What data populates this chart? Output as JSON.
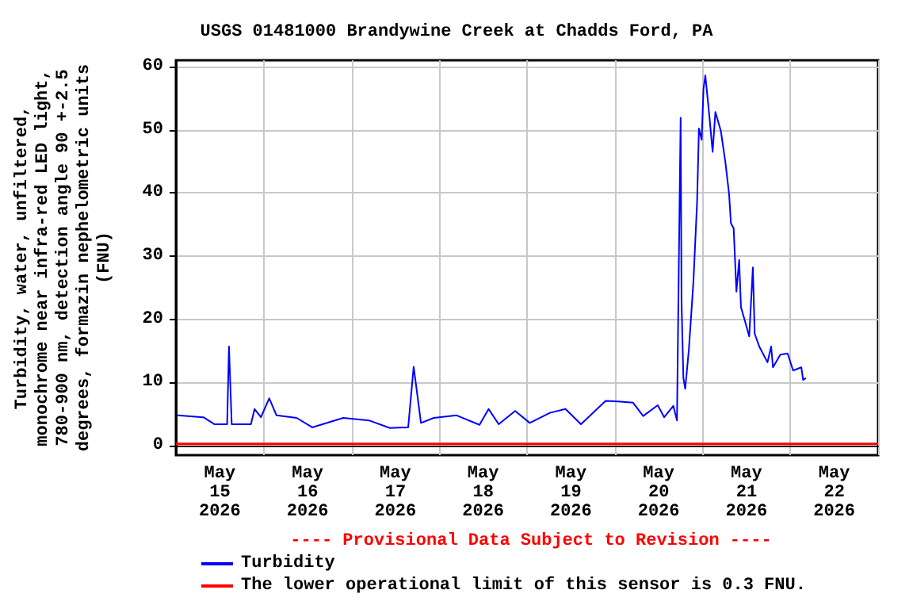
{
  "chart_data": {
    "type": "line",
    "title": "USGS 01481000 Brandywine Creek at Chadds Ford, PA",
    "ylabel": "Turbidity, water, unfiltered,\nmonochrome near infra-red LED light,\n780-900 nm, detection angle 90 +-2.5\ndegrees, formazin nephelometric units\n(FNU)",
    "annotations": [
      "---- Provisional Data Subject to Revision ----"
    ],
    "x": [
      "2026-05-15T00:30",
      "2026-05-15T07:30",
      "2026-05-15T10:30",
      "2026-05-15T14:00",
      "2026-05-15T14:30",
      "2026-05-15T15:15",
      "2026-05-15T17:30",
      "2026-05-15T20:30",
      "2026-05-15T21:30",
      "2026-05-15T23:15",
      "2026-05-16T01:30",
      "2026-05-16T03:30",
      "2026-05-16T09:00",
      "2026-05-16T13:15",
      "2026-05-16T21:45",
      "2026-05-17T04:45",
      "2026-05-17T10:30",
      "2026-05-17T15:30",
      "2026-05-17T17:00",
      "2026-05-17T19:00",
      "2026-05-17T22:30",
      "2026-05-18T04:45",
      "2026-05-18T11:00",
      "2026-05-18T13:30",
      "2026-05-18T16:15",
      "2026-05-18T20:45",
      "2026-05-19T00:45",
      "2026-05-19T06:15",
      "2026-05-19T10:30",
      "2026-05-19T14:45",
      "2026-05-19T21:30",
      "2026-05-20T00:45",
      "2026-05-20T05:00",
      "2026-05-20T07:45",
      "2026-05-20T11:45",
      "2026-05-20T13:30",
      "2026-05-20T16:00",
      "2026-05-20T17:00",
      "2026-05-20T17:30",
      "2026-05-20T18:00",
      "2026-05-20T18:15",
      "2026-05-20T18:45",
      "2026-05-20T19:15",
      "2026-05-20T20:15",
      "2026-05-20T21:30",
      "2026-05-20T22:30",
      "2026-05-20T23:00",
      "2026-05-20T23:45",
      "2026-05-21T00:15",
      "2026-05-21T00:45",
      "2026-05-21T01:45",
      "2026-05-21T02:45",
      "2026-05-21T03:30",
      "2026-05-21T05:00",
      "2026-05-21T06:15",
      "2026-05-21T07:15",
      "2026-05-21T07:45",
      "2026-05-21T08:30",
      "2026-05-21T09:15",
      "2026-05-21T10:00",
      "2026-05-21T10:30",
      "2026-05-21T11:45",
      "2026-05-21T12:45",
      "2026-05-21T13:45",
      "2026-05-21T14:15",
      "2026-05-21T15:30",
      "2026-05-21T17:45",
      "2026-05-21T18:45",
      "2026-05-21T19:15",
      "2026-05-21T21:15",
      "2026-05-21T23:15",
      "2026-05-22T00:45",
      "2026-05-22T03:00",
      "2026-05-22T03:30",
      "2026-05-22T04:15"
    ],
    "series": [
      {
        "name": "Turbidity",
        "color": "#0000ff",
        "values": [
          4.8,
          4.5,
          3.4,
          3.4,
          15.7,
          3.4,
          3.4,
          3.4,
          5.8,
          4.5,
          7.5,
          4.8,
          4.4,
          2.9,
          4.4,
          4,
          2.8,
          2.9,
          12.5,
          3.6,
          4.4,
          4.8,
          3.3,
          5.8,
          3.4,
          5.5,
          3.6,
          5.2,
          5.8,
          3.4,
          7.1,
          7,
          6.8,
          4.7,
          6.4,
          4.5,
          6.3,
          4,
          28.6,
          51.9,
          22.7,
          10.7,
          9,
          15.2,
          26,
          38.6,
          50.2,
          48.4,
          56.5,
          58.6,
          52.8,
          46.5,
          52.8,
          49.8,
          44.8,
          39.8,
          35.2,
          34.4,
          24.4,
          29.4,
          21.9,
          19.4,
          17.3,
          28.2,
          17.7,
          15.7,
          13.2,
          15.7,
          12.4,
          14.4,
          14.6,
          11.9,
          12.4,
          10.4,
          10.7
        ]
      }
    ],
    "ref_lines": [
      {
        "axis": "y",
        "value": 0.3,
        "label": "The lower operational limit of this sensor is 0.3 FNU.",
        "color": "#ff0000"
      }
    ],
    "xlim": [
      "2026-05-15T00:00",
      "2026-05-23T00:00"
    ],
    "xticks": [
      {
        "value": "2026-05-15T00:00",
        "label": null
      },
      {
        "value": "2026-05-15T12:00",
        "label": "May\n15\n2026"
      },
      {
        "value": "2026-05-16T00:00",
        "label": null
      },
      {
        "value": "2026-05-16T12:00",
        "label": "May\n16\n2026"
      },
      {
        "value": "2026-05-17T00:00",
        "label": null
      },
      {
        "value": "2026-05-17T12:00",
        "label": "May\n17\n2026"
      },
      {
        "value": "2026-05-18T00:00",
        "label": null
      },
      {
        "value": "2026-05-18T12:00",
        "label": "May\n18\n2026"
      },
      {
        "value": "2026-05-19T00:00",
        "label": null
      },
      {
        "value": "2026-05-19T12:00",
        "label": "May\n19\n2026"
      },
      {
        "value": "2026-05-20T00:00",
        "label": null
      },
      {
        "value": "2026-05-20T12:00",
        "label": "May\n20\n2026"
      },
      {
        "value": "2026-05-21T00:00",
        "label": null
      },
      {
        "value": "2026-05-21T12:00",
        "label": "May\n21\n2026"
      },
      {
        "value": "2026-05-22T00:00",
        "label": null
      },
      {
        "value": "2026-05-22T12:00",
        "label": "May\n22\n2026"
      },
      {
        "value": "2026-05-23T00:00",
        "label": null
      }
    ],
    "ylim": [
      -1.5,
      61
    ],
    "yticks": [
      0,
      10,
      20,
      30,
      40,
      50,
      60
    ],
    "grid": true,
    "legend": "bottom",
    "marker": "none",
    "line_style": "solid"
  }
}
